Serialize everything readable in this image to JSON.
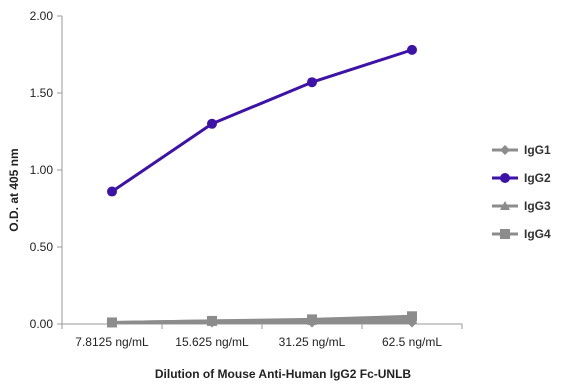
{
  "chart_data": {
    "type": "line",
    "title": "",
    "xlabel": "Dilution of Mouse Anti-Human IgG2 Fc-UNLB",
    "ylabel": "O.D. at 405 nm",
    "categories": [
      "7.8125 ng/mL",
      "15.625 ng/mL",
      "31.25 ng/mL",
      "62.5 ng/mL"
    ],
    "yticks": [
      "0.00",
      "0.50",
      "1.00",
      "1.50",
      "2.00"
    ],
    "ylim": [
      0,
      2.0
    ],
    "grid": false,
    "legend_position": "right",
    "series": [
      {
        "name": "IgG1",
        "values": [
          0.01,
          0.01,
          0.01,
          0.01
        ],
        "color": "#8c8c8c",
        "marker": "diamond"
      },
      {
        "name": "IgG2",
        "values": [
          0.86,
          1.3,
          1.57,
          1.78
        ],
        "color": "#3d12a8",
        "marker": "circle"
      },
      {
        "name": "IgG3",
        "values": [
          0.01,
          0.02,
          0.02,
          0.03
        ],
        "color": "#8c8c8c",
        "marker": "triangle"
      },
      {
        "name": "IgG4",
        "values": [
          0.01,
          0.02,
          0.03,
          0.05
        ],
        "color": "#8c8c8c",
        "marker": "square"
      }
    ]
  }
}
